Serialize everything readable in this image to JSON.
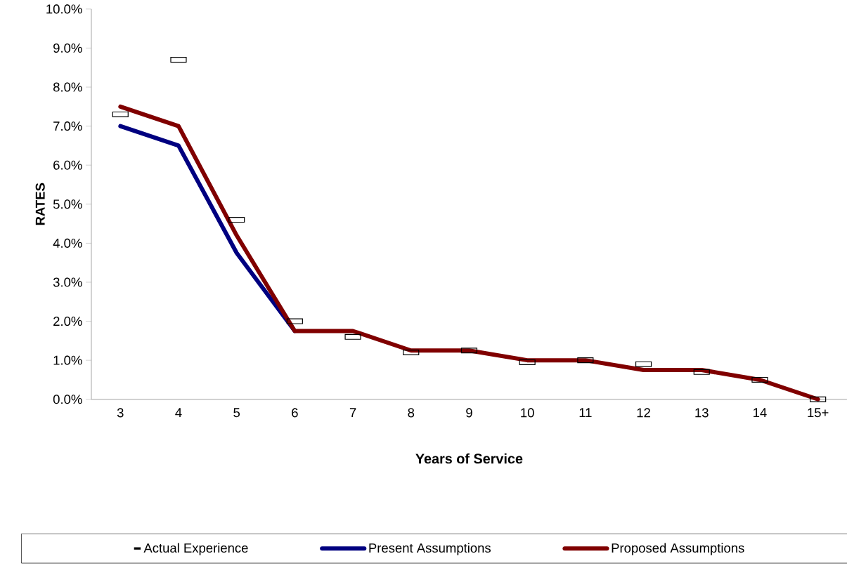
{
  "chart_data": {
    "type": "line",
    "xlabel": "Years of Service",
    "ylabel": "RATES",
    "categories": [
      "3",
      "4",
      "5",
      "6",
      "7",
      "8",
      "9",
      "10",
      "11",
      "12",
      "13",
      "14",
      "15+"
    ],
    "series": [
      {
        "name": "Actual Experience",
        "type": "scatter",
        "marker": "square",
        "color": "#000000",
        "values": [
          7.3,
          8.7,
          4.6,
          2.0,
          1.6,
          1.2,
          1.25,
          0.95,
          1.0,
          0.9,
          0.7,
          0.5,
          0.0
        ]
      },
      {
        "name": "Present Assumptions",
        "color": "#000080",
        "values": [
          7.0,
          6.5,
          3.75,
          1.75,
          null,
          null,
          null,
          null,
          null,
          null,
          null,
          null,
          null
        ]
      },
      {
        "name": "Proposed Assumptions",
        "color": "#800000",
        "values": [
          7.5,
          7.0,
          4.2,
          1.75,
          1.75,
          1.25,
          1.25,
          1.0,
          1.0,
          0.75,
          0.75,
          0.5,
          0.0
        ]
      }
    ],
    "ylim": [
      0,
      10
    ],
    "yticks": [
      {
        "value": 0,
        "label": "0.0%"
      },
      {
        "value": 1,
        "label": "1.0%"
      },
      {
        "value": 2,
        "label": "2.0%"
      },
      {
        "value": 3,
        "label": "3.0%"
      },
      {
        "value": 4,
        "label": "4.0%"
      },
      {
        "value": 5,
        "label": "5.0%"
      },
      {
        "value": 6,
        "label": "6.0%"
      },
      {
        "value": 7,
        "label": "7.0%"
      },
      {
        "value": 8,
        "label": "8.0%"
      },
      {
        "value": 9,
        "label": "9.0%"
      },
      {
        "value": 10,
        "label": "10.0%"
      }
    ],
    "grid": false,
    "legend": "bottom",
    "marker": "none",
    "line_style": "solid"
  }
}
